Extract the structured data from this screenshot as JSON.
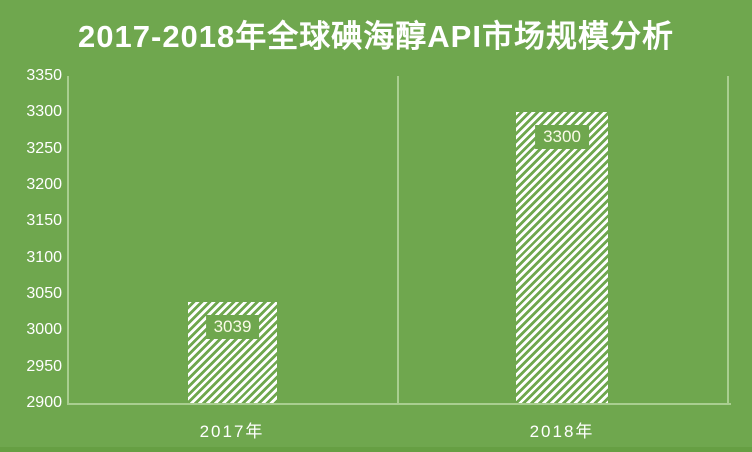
{
  "title": "2017-2018年全球碘海醇API市场规模分析",
  "colors": {
    "background": "#6FA74E",
    "axis_line": "#A9CE90",
    "title_text": "#FFFFFF",
    "tick_text": "#FFFFFF",
    "data_label_text": "#FBFBE8",
    "bar_hatch": "#FFFFFF",
    "footer_strip": "#669F43"
  },
  "chart_data": {
    "type": "bar",
    "title": "2017-2018年全球碘海醇API市场规模分析",
    "categories": [
      "2017年",
      "2018年"
    ],
    "values": [
      3039,
      3300
    ],
    "data_labels": [
      "3039",
      "3300"
    ],
    "xlabel": "",
    "ylabel": "",
    "ylim": [
      2900,
      3350
    ],
    "ytick_step": 50,
    "yticks": [
      "3350",
      "3300",
      "3250",
      "3200",
      "3150",
      "3100",
      "3050",
      "3000",
      "2950",
      "2900"
    ],
    "grid": "no horizontal gridlines; one vertical category divider at plot center; plot bordered left, right and bottom",
    "legend": "none",
    "bar_style": "white diagonal hatch (bottom-left to top-right) on green background, no border"
  }
}
